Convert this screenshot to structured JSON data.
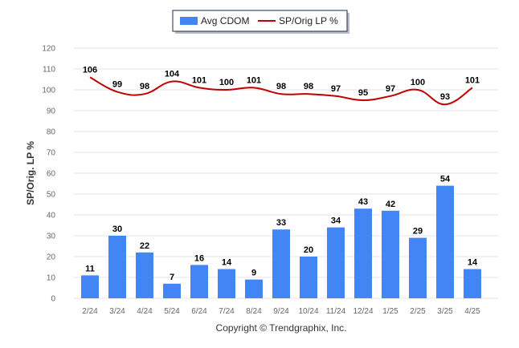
{
  "chart_data": {
    "type": "bar",
    "categories": [
      "2/24",
      "3/24",
      "4/24",
      "5/24",
      "6/24",
      "7/24",
      "8/24",
      "9/24",
      "10/24",
      "11/24",
      "12/24",
      "1/25",
      "2/25",
      "3/25",
      "4/25"
    ],
    "series": [
      {
        "name": "Avg CDOM",
        "type": "bar",
        "color": "#4285f4",
        "values": [
          11,
          30,
          22,
          7,
          16,
          14,
          9,
          33,
          20,
          34,
          43,
          42,
          29,
          54,
          14
        ]
      },
      {
        "name": "SP/Orig LP %",
        "type": "line",
        "color": "#c00000",
        "values": [
          106,
          99,
          98,
          104,
          101,
          100,
          101,
          98,
          98,
          97,
          95,
          97,
          100,
          93,
          101
        ]
      }
    ],
    "ylabel": "SP/Orig. LP %",
    "xlabel": "",
    "ylim": [
      0,
      120
    ],
    "yticks": [
      0,
      10,
      20,
      30,
      40,
      50,
      60,
      70,
      80,
      90,
      100,
      110,
      120
    ],
    "grid": true,
    "legend_position": "top-center"
  },
  "legend": {
    "bar_label": "Avg CDOM",
    "line_label": "SP/Orig LP %"
  },
  "credit": "Copyright © Trendgraphix, Inc."
}
